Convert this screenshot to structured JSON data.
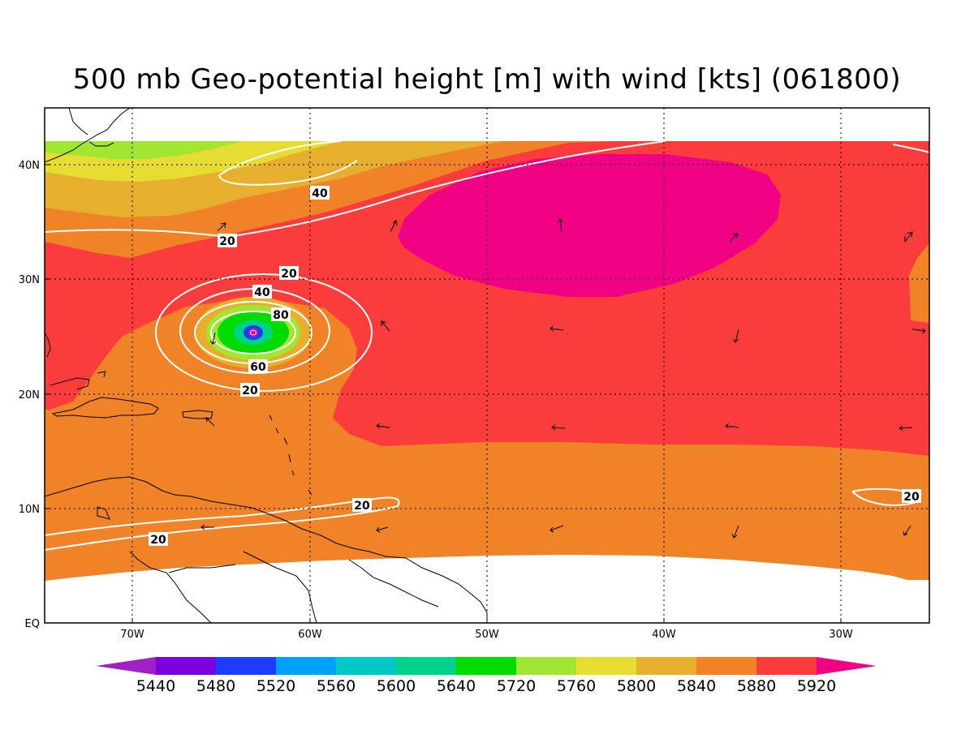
{
  "title": "500 mb Geo-potential height [m] with wind [kts] (061800)",
  "lat_labels": [
    "40N",
    "30N",
    "20N",
    "10N",
    "EQ"
  ],
  "lon_labels": [
    "70W",
    "60W",
    "50W",
    "40W",
    "30W"
  ],
  "colorbar": {
    "labels": [
      "5440",
      "5480",
      "5520",
      "5560",
      "5600",
      "5640",
      "5720",
      "5760",
      "5800",
      "5840",
      "5880",
      "5920"
    ],
    "colors": [
      "#a020c8",
      "#7a00dc",
      "#1e3cff",
      "#00a0ff",
      "#00c8c8",
      "#00d28c",
      "#00dc00",
      "#a0e632",
      "#e6dc32",
      "#e6af2d",
      "#f08228",
      "#fa3c3c",
      "#f00082"
    ]
  },
  "fill_colors": {
    "ocean_ridge": "#f00082",
    "band_5880": "#fa3c3c",
    "band_5840": "#f08228",
    "band_5800": "#e6af2d",
    "band_5760": "#e6dc32",
    "band_5720": "#a0e632",
    "band_5640": "#00dc00",
    "band_5600": "#00d28c",
    "band_5520": "#1e3cff"
  },
  "wind_contour_labels": [
    "40",
    "20",
    "20",
    "40",
    "80",
    "60",
    "20",
    "20",
    "20",
    "20"
  ]
}
